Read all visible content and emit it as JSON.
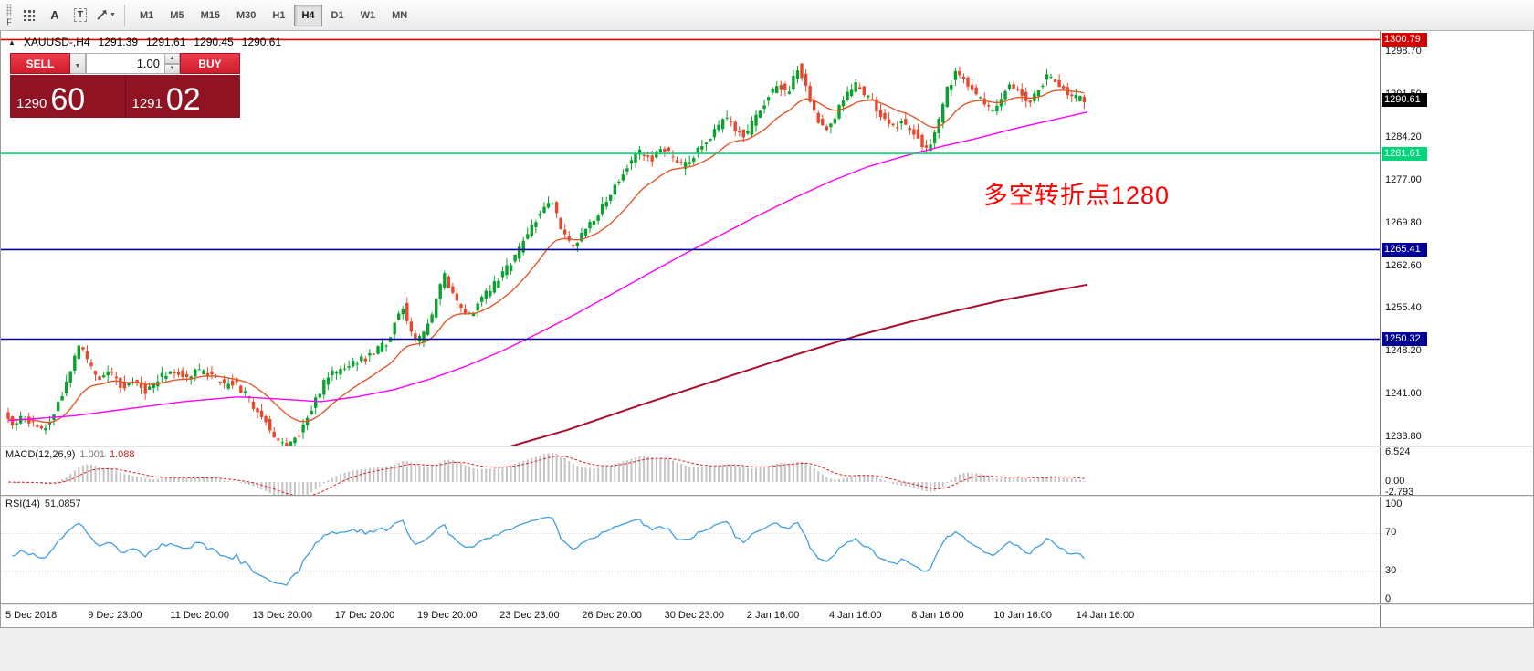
{
  "toolbar": {
    "left_label": "F",
    "icons": [
      {
        "name": "windows-grid-icon",
        "glyph": ""
      },
      {
        "name": "text-label-icon",
        "glyph": "A"
      },
      {
        "name": "text-tool-icon",
        "glyph": "T"
      },
      {
        "name": "draw-tools-icon",
        "glyph": ""
      }
    ],
    "timeframes": [
      {
        "label": "M1",
        "active": false
      },
      {
        "label": "M5",
        "active": false
      },
      {
        "label": "M15",
        "active": false
      },
      {
        "label": "M30",
        "active": false
      },
      {
        "label": "H1",
        "active": false
      },
      {
        "label": "H4",
        "active": true
      },
      {
        "label": "D1",
        "active": false
      },
      {
        "label": "W1",
        "active": false
      },
      {
        "label": "MN",
        "active": false
      }
    ]
  },
  "symbol_header": {
    "symbol": "XAUUSD-,H4",
    "open": "1291.39",
    "high": "1291.61",
    "low": "1290.45",
    "close": "1290.61"
  },
  "trade_panel": {
    "sell_label": "SELL",
    "buy_label": "BUY",
    "volume": "1.00",
    "sell_price_main": "1290",
    "sell_price_big": "60",
    "buy_price_main": "1291",
    "buy_price_big": "02"
  },
  "annotation": {
    "text": "多空转折点1280",
    "color": "#ff0000"
  },
  "price_axis": {
    "labels": [
      {
        "text": "1298.70",
        "price": 1298.7
      },
      {
        "text": "1291.50",
        "price": 1291.5
      },
      {
        "text": "1284.20",
        "price": 1284.2
      },
      {
        "text": "1277.00",
        "price": 1277.0
      },
      {
        "text": "1269.80",
        "price": 1269.8
      },
      {
        "text": "1262.60",
        "price": 1262.6
      },
      {
        "text": "1255.40",
        "price": 1255.4
      },
      {
        "text": "1248.20",
        "price": 1248.2
      },
      {
        "text": "1241.00",
        "price": 1241.0
      },
      {
        "text": "1233.80",
        "price": 1233.8
      }
    ],
    "badges": [
      {
        "text": "1300.79",
        "price": 1300.79,
        "bg": "#d40000",
        "fg": "#ffffff"
      },
      {
        "text": "1290.61",
        "price": 1290.61,
        "bg": "#000000",
        "fg": "#ffffff"
      },
      {
        "text": "1281.61",
        "price": 1281.61,
        "bg": "#00d57a",
        "fg": "#ffffff"
      },
      {
        "text": "1265.41",
        "price": 1265.41,
        "bg": "#000099",
        "fg": "#ffffff"
      },
      {
        "text": "1250.32",
        "price": 1250.32,
        "bg": "#000099",
        "fg": "#ffffff"
      }
    ]
  },
  "macd_pane": {
    "name": "MACD(12,26,9)",
    "value": "1.001",
    "signal": "1.088",
    "axis_labels": [
      "6.524",
      "0.00",
      "-2.793"
    ]
  },
  "rsi_pane": {
    "name": "RSI(14)",
    "value": "51.0857",
    "axis_labels": [
      "100",
      "70",
      "30",
      "0"
    ]
  },
  "time_axis": {
    "labels": [
      "5 Dec 2018",
      "9 Dec 23:00",
      "11 Dec 20:00",
      "13 Dec 20:00",
      "17 Dec 20:00",
      "19 Dec 20:00",
      "23 Dec 23:00",
      "26 Dec 20:00",
      "30 Dec 23:00",
      "2 Jan 16:00",
      "4 Jan 16:00",
      "8 Jan 16:00",
      "10 Jan 16:00",
      "14 Jan 16:00"
    ]
  },
  "chart_data": {
    "type": "candlestick",
    "symbol": "XAUUSD",
    "timeframe": "H4",
    "title": "XAUUSD-,H4",
    "ohlc_current": {
      "open": 1291.39,
      "high": 1291.61,
      "low": 1290.45,
      "close": 1290.61
    },
    "up_color": "#0aa22e",
    "down_color": "#e8472b",
    "y_axis": {
      "ylim": [
        1231.6,
        1302.2
      ],
      "tick_step": 7.2,
      "ticks": [
        1298.7,
        1291.5,
        1284.2,
        1277.0,
        1269.8,
        1262.6,
        1255.4,
        1248.2,
        1241.0,
        1233.8
      ]
    },
    "x_axis_labels": [
      "5 Dec 2018",
      "9 Dec 23:00",
      "11 Dec 20:00",
      "13 Dec 20:00",
      "17 Dec 20:00",
      "19 Dec 20:00",
      "23 Dec 23:00",
      "26 Dec 20:00",
      "30 Dec 23:00",
      "2 Jan 16:00",
      "4 Jan 16:00",
      "8 Jan 16:00",
      "10 Jan 16:00",
      "14 Jan 16:00"
    ],
    "horizontal_levels": [
      {
        "price": 1300.79,
        "color": "#d40000",
        "style": "solid"
      },
      {
        "price": 1281.61,
        "color": "#00d57a",
        "style": "solid"
      },
      {
        "price": 1265.41,
        "color": "#000099",
        "style": "solid"
      },
      {
        "price": 1250.32,
        "color": "#000099",
        "style": "solid"
      }
    ],
    "price_path": [
      [
        8,
        1238.0
      ],
      [
        18,
        1235.5
      ],
      [
        28,
        1237.5
      ],
      [
        40,
        1236.0
      ],
      [
        50,
        1234.5
      ],
      [
        62,
        1238.0
      ],
      [
        74,
        1242.0
      ],
      [
        86,
        1247.5
      ],
      [
        92,
        1249.5
      ],
      [
        100,
        1246.0
      ],
      [
        112,
        1243.5
      ],
      [
        124,
        1245.0
      ],
      [
        138,
        1242.0
      ],
      [
        152,
        1243.5
      ],
      [
        164,
        1241.5
      ],
      [
        178,
        1244.0
      ],
      [
        192,
        1245.0
      ],
      [
        206,
        1244.0
      ],
      [
        220,
        1245.0
      ],
      [
        234,
        1244.5
      ],
      [
        248,
        1242.5
      ],
      [
        260,
        1243.0
      ],
      [
        272,
        1241.0
      ],
      [
        284,
        1238.5
      ],
      [
        296,
        1236.0
      ],
      [
        308,
        1233.0
      ],
      [
        318,
        1232.2
      ],
      [
        330,
        1234.0
      ],
      [
        342,
        1238.0
      ],
      [
        352,
        1241.0
      ],
      [
        362,
        1244.0
      ],
      [
        374,
        1245.0
      ],
      [
        388,
        1246.5
      ],
      [
        402,
        1247.0
      ],
      [
        416,
        1248.5
      ],
      [
        428,
        1250.0
      ],
      [
        438,
        1254.0
      ],
      [
        444,
        1256.5
      ],
      [
        452,
        1252.0
      ],
      [
        460,
        1249.5
      ],
      [
        472,
        1252.5
      ],
      [
        482,
        1257.0
      ],
      [
        490,
        1261.5
      ],
      [
        496,
        1259.0
      ],
      [
        506,
        1256.0
      ],
      [
        518,
        1254.5
      ],
      [
        530,
        1257.0
      ],
      [
        542,
        1259.0
      ],
      [
        554,
        1261.5
      ],
      [
        566,
        1263.5
      ],
      [
        576,
        1266.5
      ],
      [
        586,
        1269.5
      ],
      [
        596,
        1272.0
      ],
      [
        606,
        1274.0
      ],
      [
        614,
        1271.0
      ],
      [
        622,
        1267.5
      ],
      [
        632,
        1266.0
      ],
      [
        644,
        1268.5
      ],
      [
        656,
        1271.0
      ],
      [
        668,
        1274.0
      ],
      [
        680,
        1277.0
      ],
      [
        692,
        1280.0
      ],
      [
        704,
        1282.0
      ],
      [
        716,
        1280.5
      ],
      [
        728,
        1283.0
      ],
      [
        740,
        1281.0
      ],
      [
        750,
        1279.5
      ],
      [
        762,
        1281.0
      ],
      [
        774,
        1283.0
      ],
      [
        786,
        1285.5
      ],
      [
        798,
        1287.5
      ],
      [
        810,
        1285.5
      ],
      [
        820,
        1284.5
      ],
      [
        832,
        1288.0
      ],
      [
        844,
        1291.0
      ],
      [
        856,
        1293.5
      ],
      [
        866,
        1291.0
      ],
      [
        876,
        1296.5
      ],
      [
        886,
        1293.0
      ],
      [
        896,
        1288.5
      ],
      [
        906,
        1285.5
      ],
      [
        918,
        1288.0
      ],
      [
        930,
        1291.0
      ],
      [
        940,
        1293.5
      ],
      [
        950,
        1291.5
      ],
      [
        960,
        1290.0
      ],
      [
        970,
        1288.0
      ],
      [
        980,
        1285.5
      ],
      [
        990,
        1287.0
      ],
      [
        1000,
        1286.0
      ],
      [
        1010,
        1284.0
      ],
      [
        1020,
        1281.5
      ],
      [
        1030,
        1286.0
      ],
      [
        1040,
        1292.0
      ],
      [
        1050,
        1295.0
      ],
      [
        1060,
        1294.0
      ],
      [
        1070,
        1292.0
      ],
      [
        1080,
        1290.0
      ],
      [
        1090,
        1288.5
      ],
      [
        1100,
        1291.0
      ],
      [
        1110,
        1293.5
      ],
      [
        1120,
        1292.0
      ],
      [
        1130,
        1290.0
      ],
      [
        1140,
        1292.0
      ],
      [
        1150,
        1295.0
      ],
      [
        1160,
        1294.0
      ],
      [
        1170,
        1292.0
      ],
      [
        1180,
        1291.0
      ],
      [
        1190,
        1290.6
      ]
    ],
    "moving_averages": [
      {
        "name": "fast-ma",
        "color": "#e2582a",
        "type": "ema",
        "period": 18
      },
      {
        "name": "mid-ma",
        "color": "#ff00ff",
        "width": 1.4,
        "points": [
          [
            8,
            1236.6
          ],
          [
            80,
            1237.4
          ],
          [
            140,
            1238.6
          ],
          [
            200,
            1239.8
          ],
          [
            260,
            1240.6
          ],
          [
            310,
            1240.2
          ],
          [
            350,
            1239.8
          ],
          [
            390,
            1240.6
          ],
          [
            430,
            1241.8
          ],
          [
            470,
            1243.6
          ],
          [
            510,
            1245.8
          ],
          [
            550,
            1248.4
          ],
          [
            590,
            1251.4
          ],
          [
            630,
            1254.6
          ],
          [
            670,
            1258.0
          ],
          [
            710,
            1261.4
          ],
          [
            750,
            1264.8
          ],
          [
            790,
            1268.0
          ],
          [
            830,
            1271.2
          ],
          [
            870,
            1274.2
          ],
          [
            910,
            1277.0
          ],
          [
            950,
            1279.4
          ],
          [
            990,
            1281.2
          ],
          [
            1030,
            1282.8
          ],
          [
            1070,
            1284.2
          ],
          [
            1110,
            1285.8
          ],
          [
            1150,
            1287.2
          ],
          [
            1190,
            1288.6
          ]
        ]
      },
      {
        "name": "slow-ma",
        "color": "#aa0f2e",
        "width": 2,
        "points": [
          [
            552,
            1232.0
          ],
          [
            620,
            1235.0
          ],
          [
            700,
            1239.2
          ],
          [
            780,
            1243.2
          ],
          [
            860,
            1247.2
          ],
          [
            940,
            1251.0
          ],
          [
            1020,
            1254.2
          ],
          [
            1100,
            1257.0
          ],
          [
            1190,
            1259.5
          ]
        ]
      }
    ],
    "macd": {
      "params": "12,26,9",
      "value": 1.001,
      "signal": 1.088,
      "axis_max": 6.524,
      "axis_min": -2.793
    },
    "rsi": {
      "period": 14,
      "value": 51.0857,
      "levels": [
        70,
        30
      ],
      "axis": [
        100,
        70,
        30,
        0
      ]
    }
  }
}
